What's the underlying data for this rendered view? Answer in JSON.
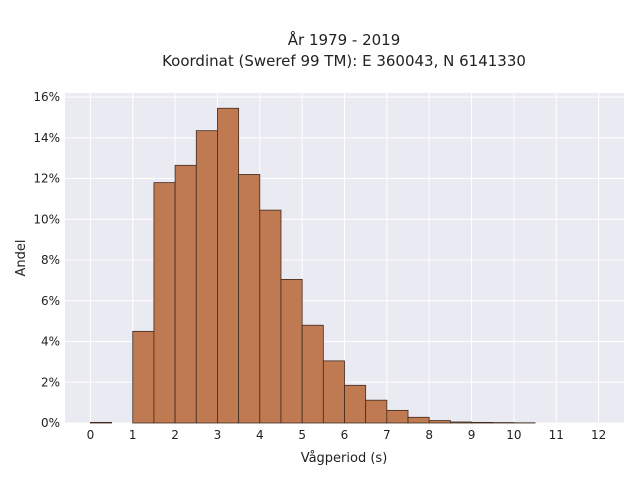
{
  "chart_data": {
    "type": "bar",
    "title_lines": [
      "År 1979 - 2019",
      "Koordinat (Sweref 99 TM): E 360043, N 6141330"
    ],
    "xlabel": "Vågperiod (s)",
    "ylabel": "Andel",
    "x_ticks": [
      0,
      1,
      2,
      3,
      4,
      5,
      6,
      7,
      8,
      9,
      10,
      11,
      12
    ],
    "y_ticks": [
      "0%",
      "2%",
      "4%",
      "6%",
      "8%",
      "10%",
      "12%",
      "14%",
      "16%"
    ],
    "y_tick_values": [
      0,
      2,
      4,
      6,
      8,
      10,
      12,
      14,
      16
    ],
    "xlim": [
      -0.6,
      12.6
    ],
    "ylim": [
      0,
      16.2
    ],
    "grid": true,
    "bin_width": 0.5,
    "bin_starts": [
      0,
      0.5,
      1,
      1.5,
      2,
      2.5,
      3,
      3.5,
      4,
      4.5,
      5,
      5.5,
      6,
      6.5,
      7,
      7.5,
      8,
      8.5,
      9,
      9.5,
      10
    ],
    "values": [
      0.03,
      0,
      4.5,
      11.8,
      12.65,
      14.35,
      15.45,
      12.2,
      10.45,
      7.05,
      4.8,
      3.05,
      1.85,
      1.12,
      0.62,
      0.28,
      0.12,
      0.05,
      0.03,
      0.02,
      0.01
    ],
    "colors": {
      "bar_fill": "#c07a52",
      "bar_edge": "#3e2a1e",
      "plot_background": "#eaeaf2",
      "grid": "#ffffff"
    }
  }
}
